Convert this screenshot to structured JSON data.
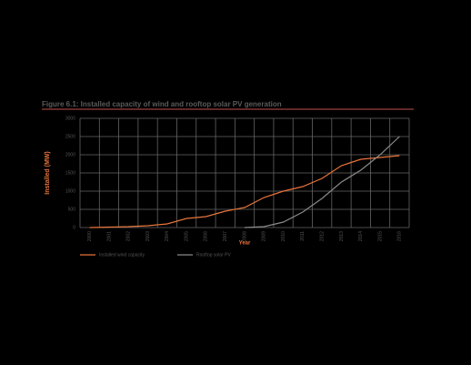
{
  "chart_data": {
    "type": "line",
    "title": "Figure 6.1: Installed capacity of wind and rooftop solar PV generation",
    "y_label": "Installed (MW)",
    "x_label": "Year",
    "categories": [
      "2000",
      "2001",
      "2002",
      "2003",
      "2004",
      "2005",
      "2006",
      "2007",
      "2008",
      "2009",
      "2010",
      "2011",
      "2012",
      "2013",
      "2014",
      "2015",
      "2016"
    ],
    "series": [
      {
        "name": "Installed wind capacity",
        "color": "#e8743b",
        "values": [
          0,
          12,
          25,
          50,
          100,
          250,
          300,
          450,
          550,
          825,
          1000,
          1125,
          1350,
          1700,
          1875,
          1925,
          1975
        ]
      },
      {
        "name": "Rooftop solar PV",
        "color": "#8a8a8a",
        "values": [
          null,
          null,
          null,
          null,
          null,
          null,
          null,
          null,
          0,
          25,
          150,
          425,
          800,
          1250,
          1575,
          2000,
          2500
        ]
      }
    ],
    "ylim": [
      0,
      3000
    ],
    "yticks": [
      0,
      500,
      1000,
      1500,
      2000,
      2500,
      3000
    ],
    "grid": true
  }
}
